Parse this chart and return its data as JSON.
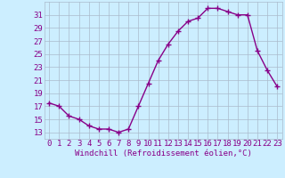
{
  "x": [
    0,
    1,
    2,
    3,
    4,
    5,
    6,
    7,
    8,
    9,
    10,
    11,
    12,
    13,
    14,
    15,
    16,
    17,
    18,
    19,
    20,
    21,
    22,
    23
  ],
  "y": [
    17.5,
    17.0,
    15.5,
    15.0,
    14.0,
    13.5,
    13.5,
    13.0,
    13.5,
    17.0,
    20.5,
    24.0,
    26.5,
    28.5,
    30.0,
    30.5,
    32.0,
    32.0,
    31.5,
    31.0,
    31.0,
    25.5,
    22.5,
    20.0
  ],
  "line_color": "#880088",
  "marker": "+",
  "marker_color": "#880088",
  "bg_color": "#cceeff",
  "grid_color": "#aabbcc",
  "xlabel": "Windchill (Refroidissement éolien,°C)",
  "ylabel_ticks": [
    13,
    15,
    17,
    19,
    21,
    23,
    25,
    27,
    29,
    31
  ],
  "xlim": [
    -0.5,
    23.5
  ],
  "ylim": [
    12.0,
    33.0
  ],
  "xticks": [
    0,
    1,
    2,
    3,
    4,
    5,
    6,
    7,
    8,
    9,
    10,
    11,
    12,
    13,
    14,
    15,
    16,
    17,
    18,
    19,
    20,
    21,
    22,
    23
  ],
  "line_width": 1.0,
  "marker_size": 4,
  "font_color": "#880088",
  "font_size": 6.5,
  "xlabel_size": 6.5
}
